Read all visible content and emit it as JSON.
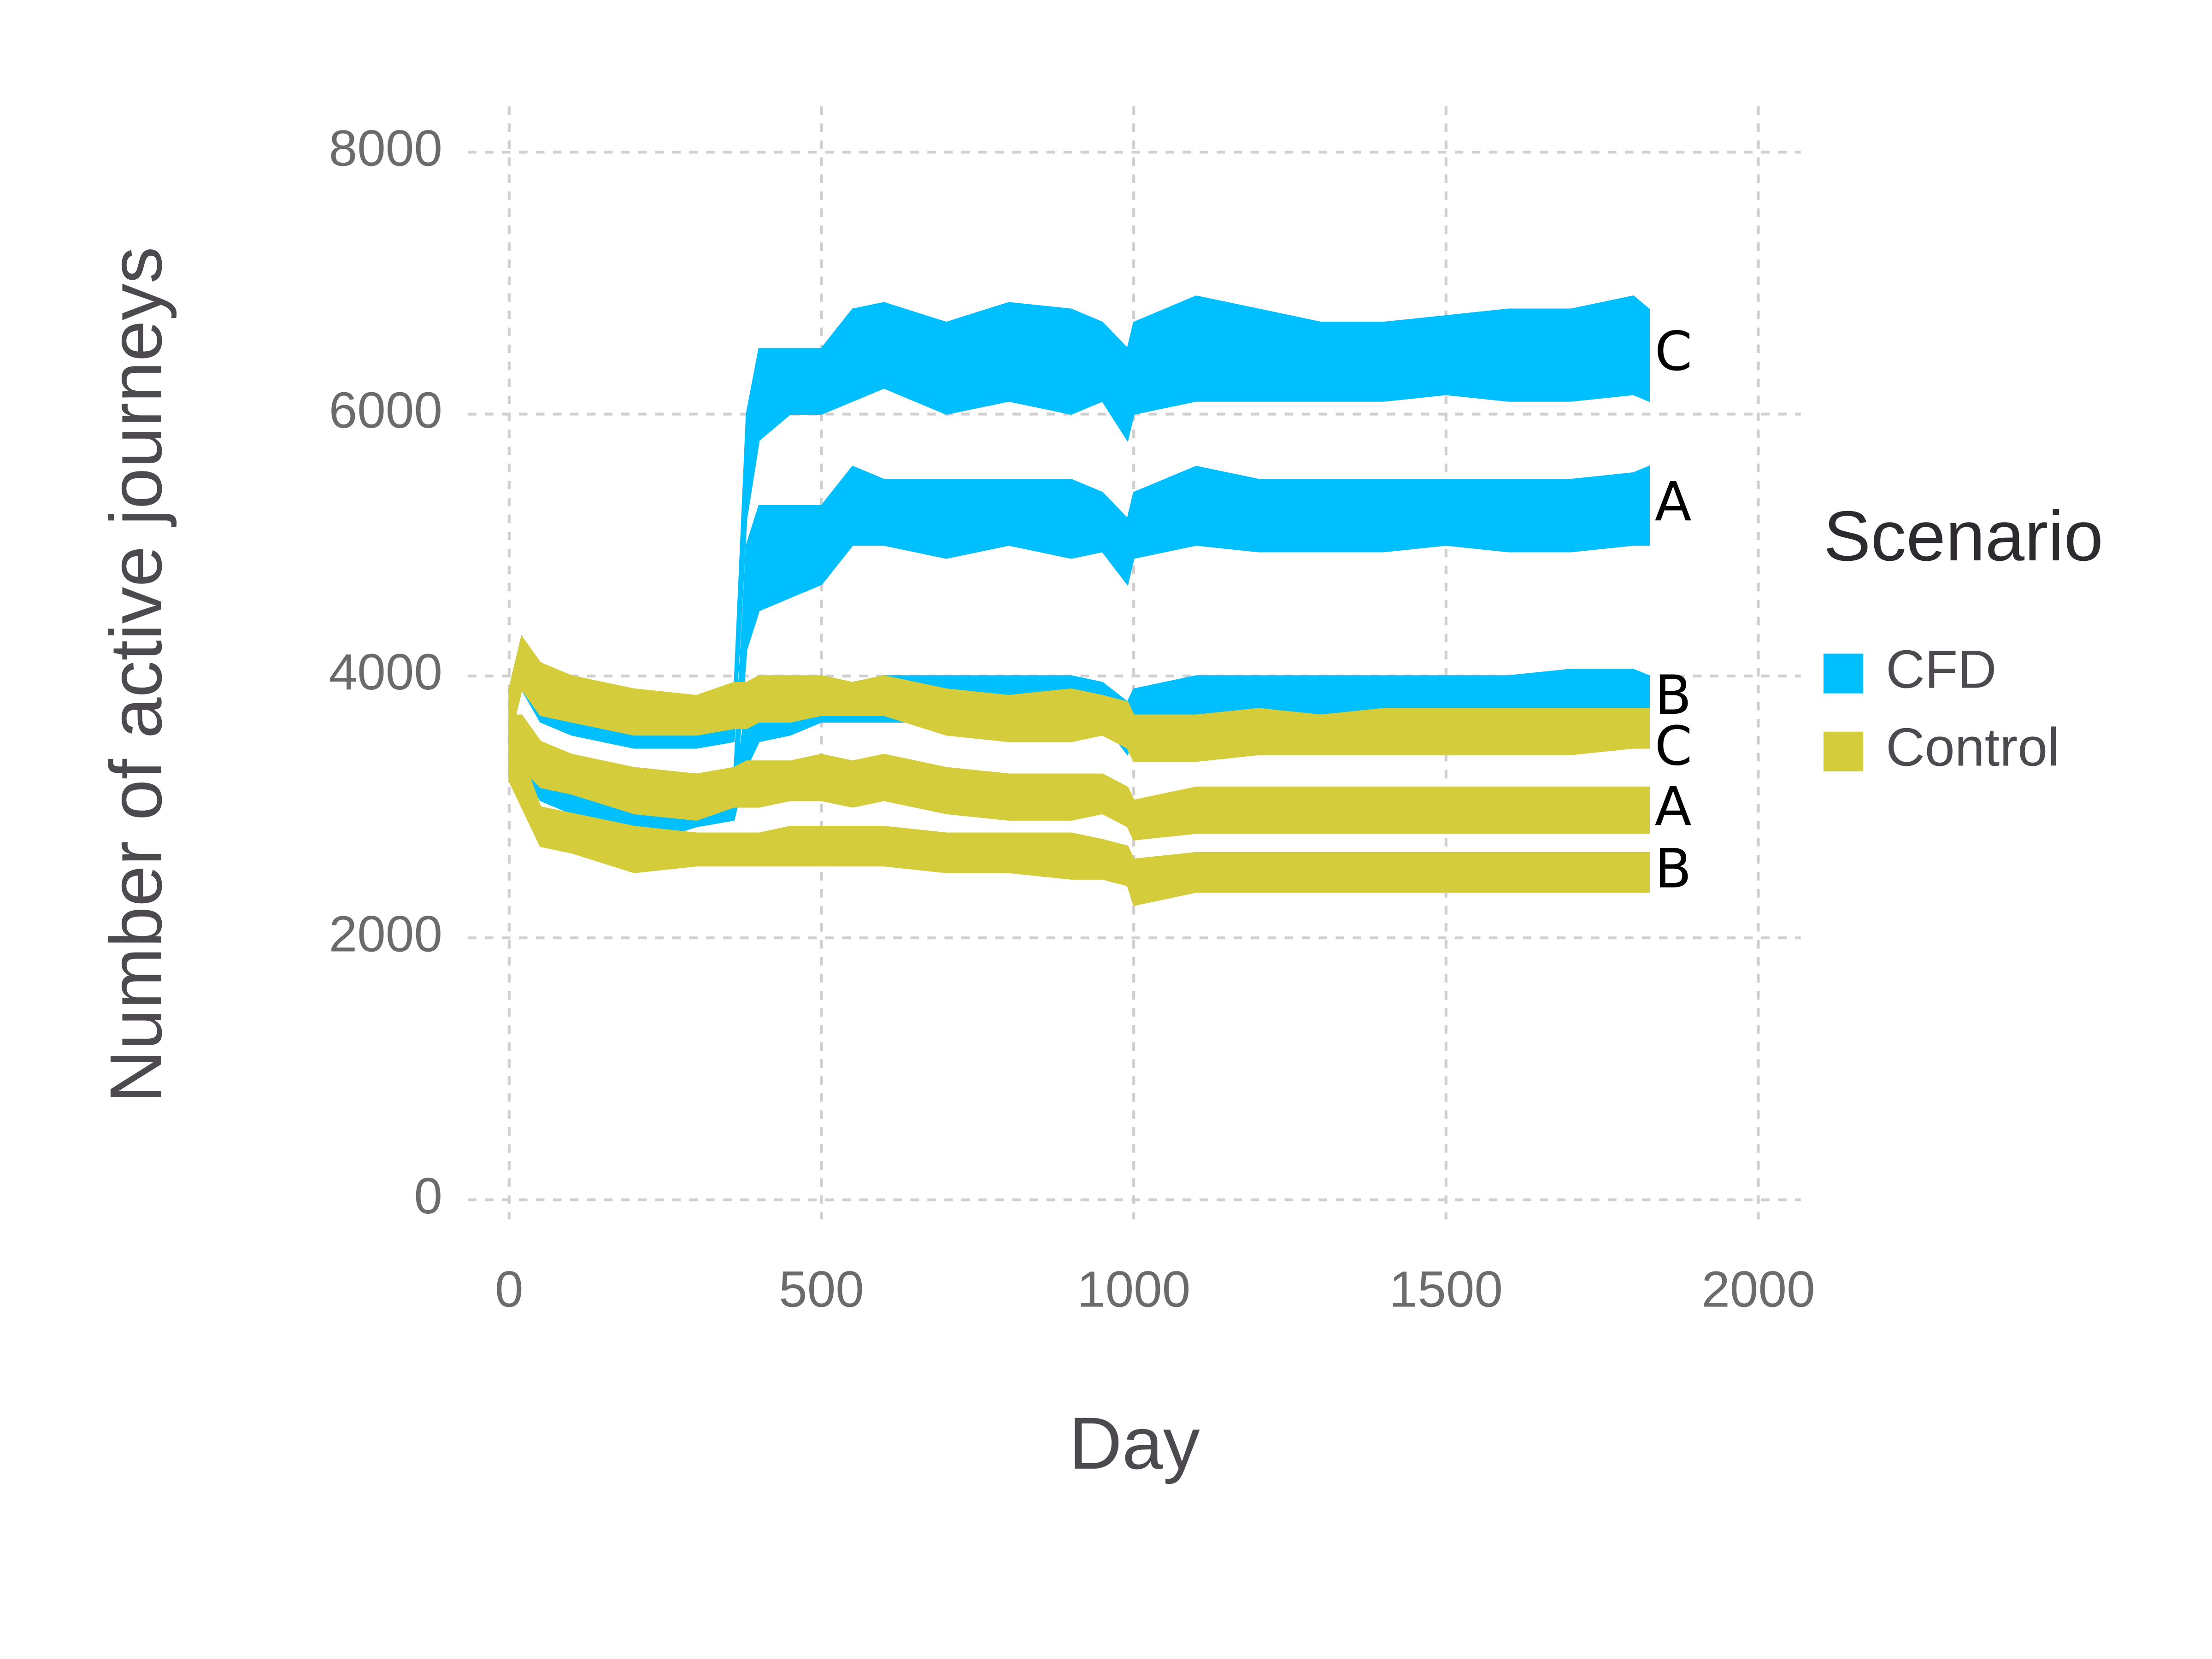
{
  "chart_data": {
    "type": "ribbon",
    "x_label": "Day",
    "y_label": "Number of active journeys",
    "legend_title": "Scenario",
    "x": [
      0,
      20,
      50,
      100,
      200,
      300,
      360,
      380,
      400,
      450,
      500,
      550,
      600,
      700,
      800,
      900,
      950,
      990,
      1000,
      1100,
      1200,
      1300,
      1400,
      1500,
      1600,
      1700,
      1800,
      1825
    ],
    "groups": [
      {
        "name": "CFD",
        "color": "#00bfff",
        "series": [
          {
            "name": "C",
            "low": [
              3500,
              3900,
              3650,
              3550,
              3450,
              3450,
              3500,
              5200,
              5800,
              6000,
              6000,
              6100,
              6200,
              6000,
              6100,
              6000,
              6100,
              5800,
              6000,
              6100,
              6100,
              6100,
              6100,
              6150,
              6100,
              6100,
              6150,
              6100
            ],
            "high": [
              3900,
              4300,
              4050,
              3950,
              3850,
              3800,
              3850,
              6000,
              6500,
              6500,
              6500,
              6800,
              6850,
              6700,
              6850,
              6800,
              6700,
              6500,
              6700,
              6900,
              6800,
              6700,
              6700,
              6750,
              6800,
              6800,
              6900,
              6800
            ]
          },
          {
            "name": "A",
            "low": [
              3250,
              3300,
              3100,
              3000,
              2900,
              2950,
              2950,
              4200,
              4500,
              4600,
              4700,
              5000,
              5000,
              4900,
              5000,
              4900,
              4950,
              4700,
              4900,
              5000,
              4950,
              4950,
              4950,
              5000,
              4950,
              4950,
              5000,
              5000
            ],
            "high": [
              3650,
              3700,
              3450,
              3300,
              3250,
              3200,
              3250,
              5000,
              5300,
              5300,
              5300,
              5600,
              5500,
              5500,
              5500,
              5500,
              5400,
              5200,
              5400,
              5600,
              5500,
              5500,
              5500,
              5500,
              5500,
              5500,
              5550,
              5600
            ]
          },
          {
            "name": "B",
            "low": [
              3200,
              3300,
              3050,
              2950,
              2700,
              2850,
              2900,
              3300,
              3500,
              3550,
              3650,
              3650,
              3650,
              3650,
              3650,
              3650,
              3650,
              3400,
              3650,
              3650,
              3650,
              3650,
              3650,
              3650,
              3650,
              3650,
              3650,
              3650
            ],
            "high": [
              3600,
              3700,
              3350,
              3250,
              3000,
              3050,
              3100,
              3800,
              3900,
              3900,
              3950,
              3950,
              4000,
              4000,
              4000,
              4000,
              3950,
              3800,
              3900,
              4000,
              4000,
              4000,
              4000,
              4000,
              4000,
              4050,
              4050,
              4000
            ]
          }
        ]
      },
      {
        "name": "Control",
        "color": "#d4cc3a",
        "series": [
          {
            "name": "C",
            "low": [
              3500,
              3900,
              3700,
              3650,
              3550,
              3550,
              3600,
              3600,
              3650,
              3650,
              3700,
              3700,
              3700,
              3550,
              3500,
              3500,
              3550,
              3450,
              3350,
              3350,
              3400,
              3400,
              3400,
              3400,
              3400,
              3400,
              3450,
              3450
            ],
            "high": [
              3900,
              4300,
              4100,
              4000,
              3900,
              3850,
              3950,
              3950,
              4000,
              4000,
              4000,
              3950,
              4000,
              3900,
              3850,
              3900,
              3850,
              3800,
              3700,
              3700,
              3750,
              3700,
              3750,
              3750,
              3750,
              3750,
              3750,
              3750
            ]
          },
          {
            "name": "A",
            "low": [
              3300,
              3300,
              3150,
              3100,
              2950,
              2900,
              3000,
              3000,
              3000,
              3050,
              3050,
              3000,
              3050,
              2950,
              2900,
              2900,
              2950,
              2850,
              2750,
              2800,
              2800,
              2800,
              2800,
              2800,
              2800,
              2800,
              2800,
              2800
            ],
            "high": [
              3700,
              3700,
              3500,
              3400,
              3300,
              3250,
              3300,
              3350,
              3350,
              3350,
              3400,
              3350,
              3400,
              3300,
              3250,
              3250,
              3250,
              3150,
              3050,
              3150,
              3150,
              3150,
              3150,
              3150,
              3150,
              3150,
              3150,
              3150
            ]
          },
          {
            "name": "B",
            "low": [
              3200,
              3000,
              2700,
              2650,
              2500,
              2550,
              2550,
              2550,
              2550,
              2550,
              2550,
              2550,
              2550,
              2500,
              2500,
              2450,
              2450,
              2400,
              2250,
              2350,
              2350,
              2350,
              2350,
              2350,
              2350,
              2350,
              2350,
              2350
            ],
            "high": [
              3600,
              3400,
              3000,
              2950,
              2850,
              2800,
              2800,
              2800,
              2800,
              2850,
              2850,
              2850,
              2850,
              2800,
              2800,
              2800,
              2750,
              2700,
              2600,
              2650,
              2650,
              2650,
              2650,
              2650,
              2650,
              2650,
              2650,
              2650
            ]
          }
        ]
      }
    ],
    "xlim": [
      -66,
      2068
    ],
    "ylim": [
      -150,
      8350
    ],
    "xticks": [
      0,
      500,
      1000,
      1500,
      2000
    ],
    "yticks": [
      0,
      2000,
      4000,
      6000,
      8000
    ],
    "grid": true
  }
}
